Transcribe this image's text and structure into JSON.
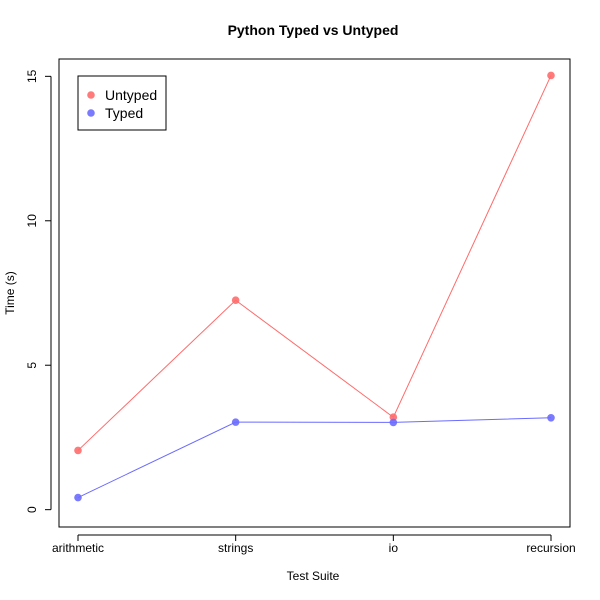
{
  "chart_data": {
    "type": "line",
    "title": "Python Typed vs Untyped",
    "xlabel": "Test Suite",
    "ylabel": "Time (s)",
    "categories": [
      "arithmetic",
      "strings",
      "io",
      "recursion"
    ],
    "y_ticks": [
      0,
      5,
      10,
      15
    ],
    "ylim": [
      -0.6,
      15.6
    ],
    "grid": false,
    "legend_position": "top-left",
    "series": [
      {
        "name": "Untyped",
        "color": "#ff6b6b",
        "values": [
          2.05,
          7.25,
          3.2,
          15.03
        ]
      },
      {
        "name": "Typed",
        "color": "#6b6bff",
        "values": [
          0.42,
          3.03,
          3.02,
          3.18
        ]
      }
    ]
  }
}
